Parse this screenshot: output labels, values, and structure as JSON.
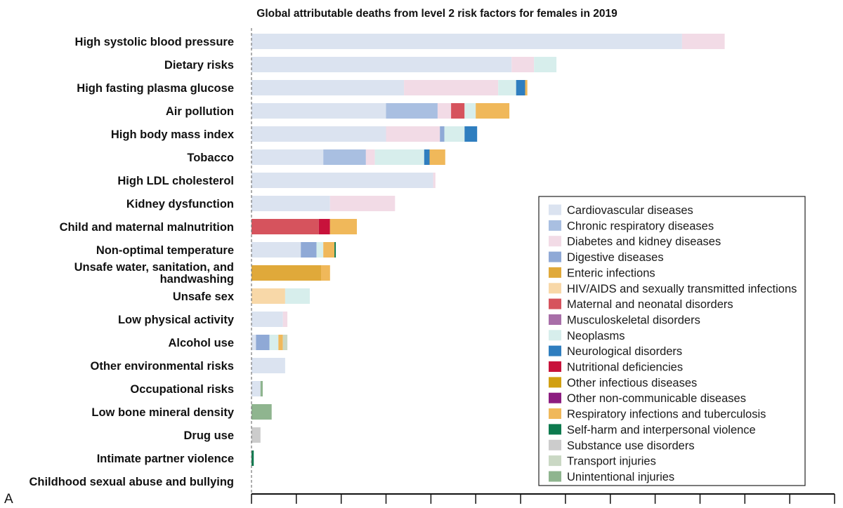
{
  "chart_data": {
    "type": "bar",
    "orientation": "horizontal",
    "stacked": true,
    "title": "Global attributable deaths from level 2 risk factors for females in 2019",
    "panel_label": "A",
    "xlabel": "",
    "ylabel": "",
    "xlim": [
      0,
      1300
    ],
    "x_tick_count": 13,
    "grid": false,
    "legend_position": "right",
    "categories": [
      [
        "High systolic blood pressure"
      ],
      [
        "Dietary risks"
      ],
      [
        "High fasting plasma glucose"
      ],
      [
        "Air pollution"
      ],
      [
        "High body mass index"
      ],
      [
        "Tobacco"
      ],
      [
        "High LDL cholesterol"
      ],
      [
        "Kidney dysfunction"
      ],
      [
        "Child and maternal malnutrition"
      ],
      [
        "Non-optimal temperature"
      ],
      [
        "Unsafe water, sanitation, and",
        "handwashing"
      ],
      [
        "Unsafe sex"
      ],
      [
        "Low physical activity"
      ],
      [
        "Alcohol use"
      ],
      [
        "Other environmental risks"
      ],
      [
        "Occupational risks"
      ],
      [
        "Low bone mineral density"
      ],
      [
        "Drug use"
      ],
      [
        "Intimate partner violence"
      ],
      [
        "Childhood sexual abuse and bullying"
      ]
    ],
    "series": [
      {
        "name": "Cardiovascular diseases",
        "color": "#dbe3f0",
        "values": [
          960,
          580,
          340,
          300,
          300,
          160,
          405,
          175,
          0,
          110,
          0,
          0,
          70,
          10,
          75,
          20,
          0,
          0,
          0,
          0
        ]
      },
      {
        "name": "Chronic respiratory diseases",
        "color": "#a9bfe1",
        "values": [
          0,
          0,
          0,
          115,
          0,
          95,
          0,
          0,
          0,
          0,
          0,
          0,
          0,
          0,
          0,
          0,
          0,
          0,
          0,
          0
        ]
      },
      {
        "name": "Diabetes and kidney diseases",
        "color": "#f2dbe6",
        "values": [
          95,
          50,
          210,
          30,
          120,
          20,
          5,
          145,
          0,
          0,
          0,
          0,
          10,
          0,
          0,
          0,
          0,
          0,
          0,
          0
        ]
      },
      {
        "name": "Digestive diseases",
        "color": "#8fa9d6",
        "values": [
          0,
          0,
          0,
          0,
          10,
          0,
          0,
          0,
          0,
          35,
          0,
          0,
          0,
          30,
          0,
          0,
          0,
          0,
          0,
          0
        ]
      },
      {
        "name": "Enteric infections",
        "color": "#e0a93a",
        "values": [
          0,
          0,
          0,
          0,
          0,
          0,
          0,
          0,
          0,
          0,
          155,
          0,
          0,
          0,
          0,
          0,
          0,
          0,
          0,
          0
        ]
      },
      {
        "name": "HIV/AIDS and sexually transmitted infections",
        "color": "#f8d8a8",
        "values": [
          0,
          0,
          0,
          0,
          0,
          0,
          0,
          0,
          0,
          0,
          0,
          75,
          0,
          0,
          0,
          0,
          0,
          0,
          0,
          0
        ]
      },
      {
        "name": "Maternal and neonatal disorders",
        "color": "#d6535d",
        "values": [
          0,
          0,
          0,
          30,
          0,
          0,
          0,
          0,
          150,
          0,
          0,
          0,
          0,
          0,
          0,
          0,
          0,
          0,
          0,
          0
        ]
      },
      {
        "name": "Musculoskeletal disorders",
        "color": "#a86ea8",
        "values": [
          0,
          0,
          0,
          0,
          0,
          0,
          0,
          0,
          0,
          0,
          0,
          0,
          0,
          0,
          0,
          0,
          0,
          0,
          0,
          0
        ]
      },
      {
        "name": "Neoplasms",
        "color": "#d7eeec",
        "values": [
          0,
          50,
          40,
          25,
          45,
          110,
          0,
          0,
          0,
          15,
          0,
          55,
          0,
          20,
          0,
          0,
          0,
          0,
          0,
          0
        ]
      },
      {
        "name": "Neurological disorders",
        "color": "#2f7ebf",
        "values": [
          0,
          0,
          20,
          0,
          28,
          12,
          0,
          0,
          0,
          0,
          0,
          0,
          0,
          0,
          0,
          0,
          0,
          0,
          0,
          0
        ]
      },
      {
        "name": "Nutritional deficiencies",
        "color": "#c8123b",
        "values": [
          0,
          0,
          0,
          0,
          0,
          0,
          0,
          0,
          25,
          0,
          0,
          0,
          0,
          0,
          0,
          0,
          0,
          0,
          0,
          0
        ]
      },
      {
        "name": "Other infectious diseases",
        "color": "#d1a012",
        "values": [
          0,
          0,
          0,
          0,
          0,
          0,
          0,
          0,
          0,
          0,
          0,
          0,
          0,
          0,
          0,
          0,
          0,
          0,
          0,
          0
        ]
      },
      {
        "name": "Other non-communicable diseases",
        "color": "#8c1c80",
        "values": [
          0,
          0,
          0,
          0,
          0,
          0,
          0,
          0,
          0,
          0,
          0,
          0,
          0,
          0,
          0,
          0,
          0,
          0,
          0,
          0
        ]
      },
      {
        "name": "Respiratory infections and tuberculosis",
        "color": "#f0b85a",
        "values": [
          0,
          0,
          5,
          75,
          0,
          35,
          0,
          0,
          60,
          25,
          20,
          0,
          0,
          10,
          0,
          0,
          0,
          0,
          0,
          0
        ]
      },
      {
        "name": "Self-harm and interpersonal violence",
        "color": "#0d7a4e",
        "values": [
          0,
          0,
          0,
          0,
          0,
          0,
          0,
          0,
          0,
          3,
          0,
          0,
          0,
          0,
          0,
          0,
          0,
          0,
          5,
          0
        ]
      },
      {
        "name": "Substance use disorders",
        "color": "#cccccc",
        "values": [
          0,
          0,
          0,
          0,
          0,
          0,
          0,
          0,
          0,
          0,
          0,
          0,
          0,
          0,
          0,
          0,
          0,
          20,
          0,
          0
        ]
      },
      {
        "name": "Transport injuries",
        "color": "#cad8c4",
        "values": [
          0,
          0,
          0,
          0,
          0,
          0,
          0,
          0,
          0,
          0,
          0,
          0,
          0,
          10,
          0,
          0,
          0,
          0,
          0,
          0
        ]
      },
      {
        "name": "Unintentional injuries",
        "color": "#8fb58f",
        "values": [
          0,
          0,
          0,
          0,
          0,
          0,
          0,
          0,
          0,
          0,
          0,
          0,
          0,
          0,
          0,
          5,
          45,
          0,
          0,
          0
        ]
      }
    ]
  }
}
